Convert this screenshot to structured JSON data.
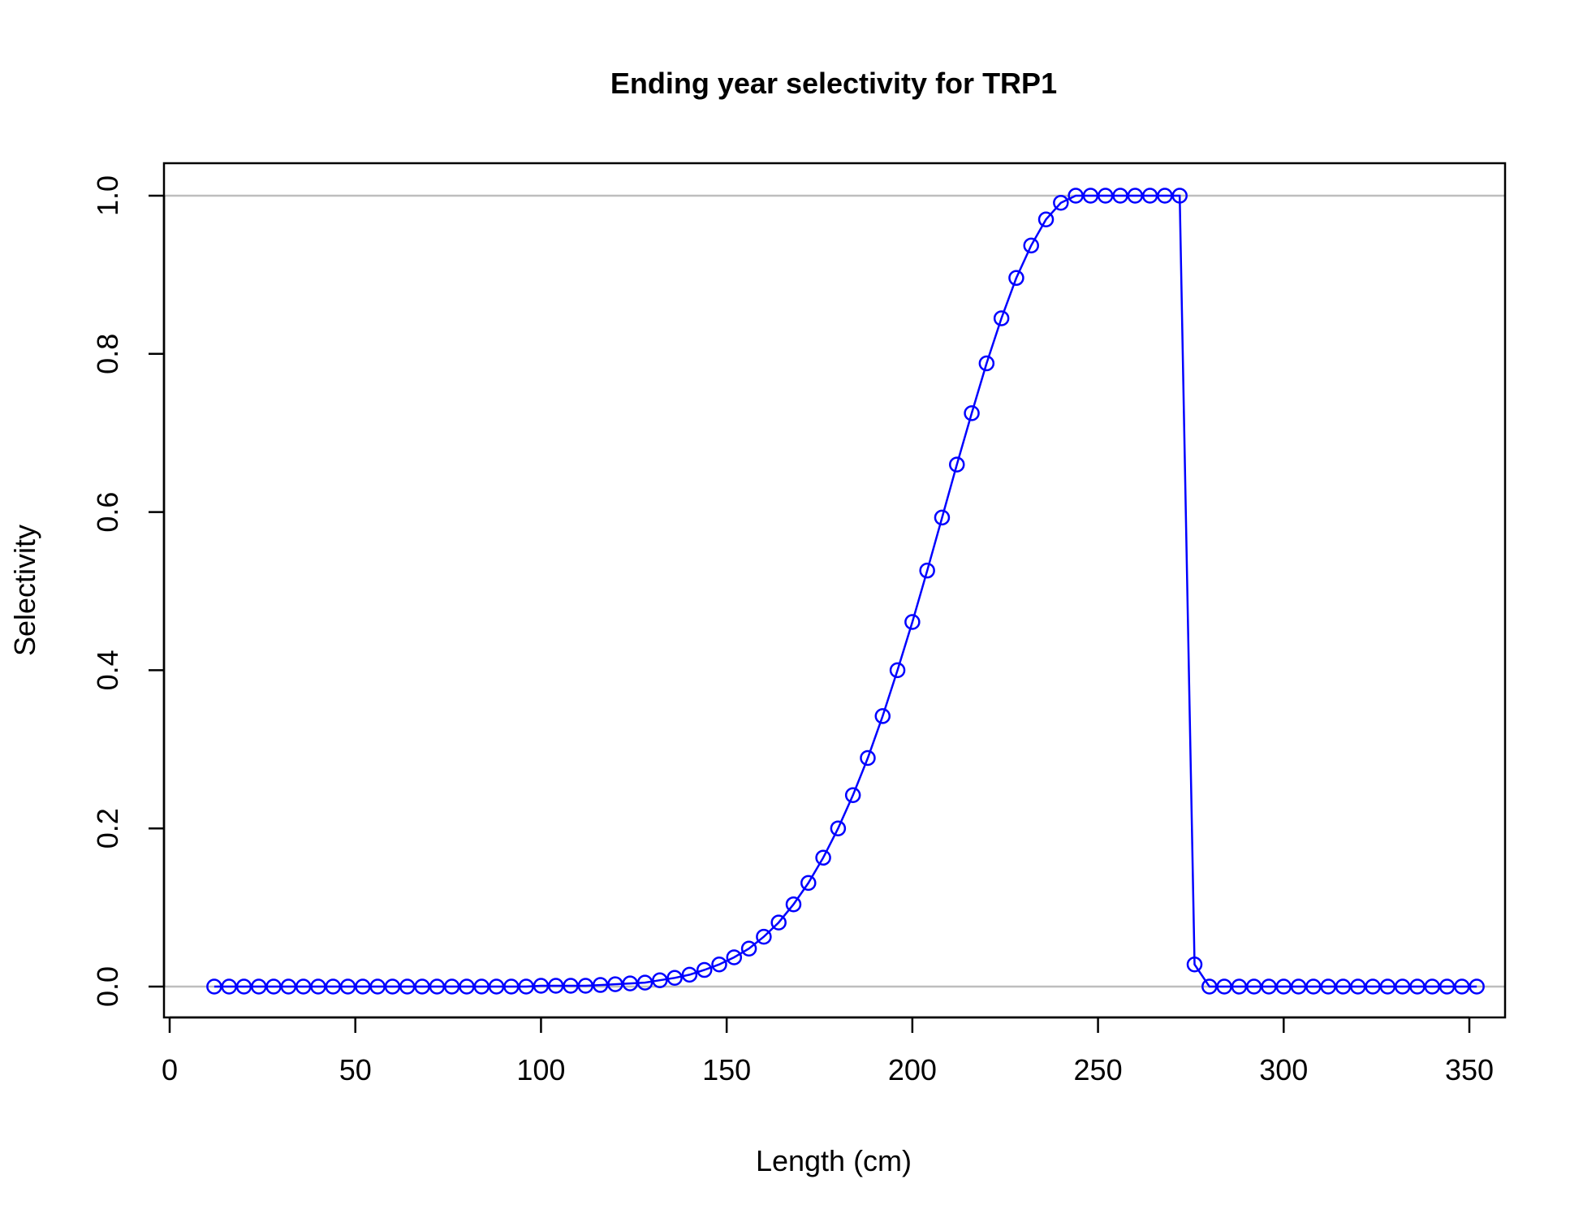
{
  "chart_data": {
    "type": "line",
    "title": "Ending year selectivity for TRP1",
    "xlabel": "Length (cm)",
    "ylabel": "Selectivity",
    "xlim": [
      0,
      350
    ],
    "ylim": [
      0,
      1
    ],
    "x_ticks": [
      "0",
      "50",
      "100",
      "150",
      "200",
      "250",
      "300",
      "350"
    ],
    "y_ticks": [
      "0.0",
      "0.2",
      "0.4",
      "0.6",
      "0.8",
      "1.0"
    ],
    "reference_lines_y": [
      0,
      1
    ],
    "grid": false,
    "colors": {
      "series": "#0000ff",
      "reference_line": "#bebebe",
      "axis": "#000000"
    },
    "series": [
      {
        "marker": "open-circle",
        "x": [
          12,
          16,
          20,
          24,
          28,
          32,
          36,
          40,
          44,
          48,
          52,
          56,
          60,
          64,
          68,
          72,
          76,
          80,
          84,
          88,
          92,
          96,
          100,
          104,
          108,
          112,
          116,
          120,
          124,
          128,
          132,
          136,
          140,
          144,
          148,
          152,
          156,
          160,
          164,
          168,
          172,
          176,
          180,
          184,
          188,
          192,
          196,
          200,
          204,
          208,
          212,
          216,
          220,
          224,
          228,
          232,
          236,
          240,
          244,
          248,
          252,
          256,
          260,
          264,
          268,
          272,
          276,
          280,
          284,
          288,
          292,
          296,
          300,
          304,
          308,
          312,
          316,
          320,
          324,
          328,
          332,
          336,
          340,
          344,
          348,
          352
        ],
        "y": [
          0,
          0,
          0,
          0,
          0,
          0,
          0,
          0,
          0,
          0,
          0,
          0,
          0,
          0,
          0,
          0,
          0,
          0,
          0,
          0,
          0,
          0,
          0.001,
          0.001,
          0.001,
          0.001,
          0.002,
          0.003,
          0.004,
          0.005,
          0.008,
          0.011,
          0.015,
          0.021,
          0.028,
          0.037,
          0.048,
          0.063,
          0.081,
          0.104,
          0.131,
          0.163,
          0.2,
          0.242,
          0.289,
          0.342,
          0.4,
          0.461,
          0.526,
          0.593,
          0.66,
          0.725,
          0.788,
          0.845,
          0.896,
          0.937,
          0.97,
          0.991,
          1,
          1,
          1,
          1,
          1,
          1,
          1,
          1,
          0.028,
          0,
          0,
          0,
          0,
          0,
          0,
          0,
          0,
          0,
          0,
          0,
          0,
          0,
          0,
          0,
          0,
          0,
          0,
          0
        ]
      }
    ]
  }
}
